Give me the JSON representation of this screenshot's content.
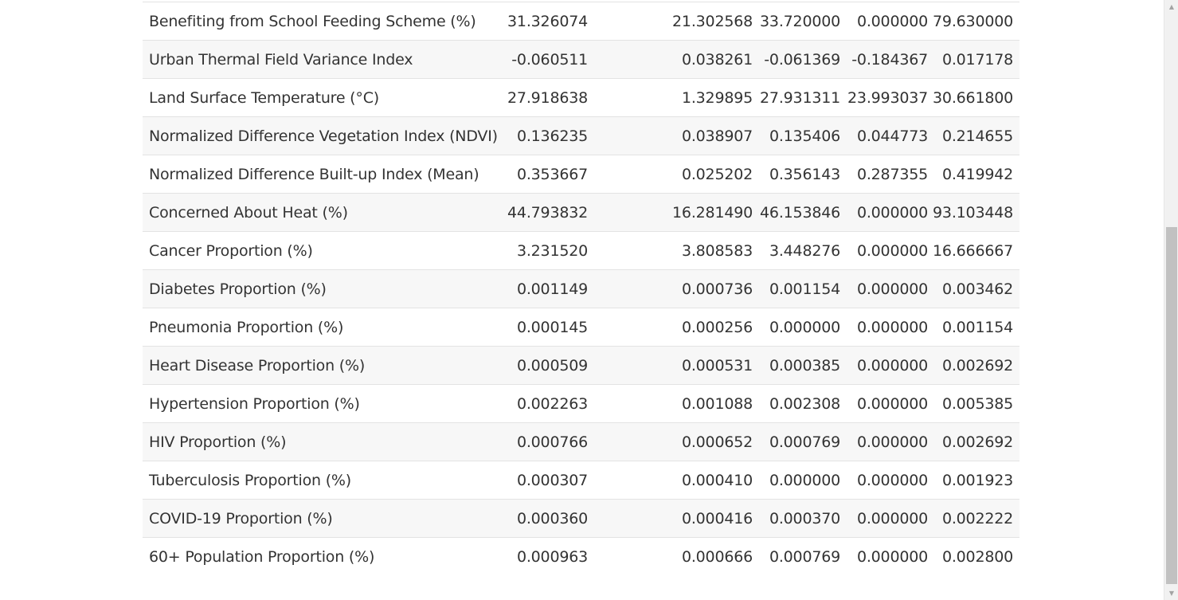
{
  "table": {
    "rows": [
      {
        "label": "Benefiting from School Feeding Scheme (%)",
        "mean": "31.326074",
        "std": "21.302568",
        "median": "33.720000",
        "min": "0.000000",
        "max": "79.630000"
      },
      {
        "label": "Urban Thermal Field Variance Index",
        "mean": "-0.060511",
        "std": "0.038261",
        "median": "-0.061369",
        "min": "-0.184367",
        "max": "0.017178"
      },
      {
        "label": "Land Surface Temperature (°C)",
        "mean": "27.918638",
        "std": "1.329895",
        "median": "27.931311",
        "min": "23.993037",
        "max": "30.661800"
      },
      {
        "label": "Normalized Difference Vegetation Index (NDVI)",
        "mean": "0.136235",
        "std": "0.038907",
        "median": "0.135406",
        "min": "0.044773",
        "max": "0.214655"
      },
      {
        "label": "Normalized Difference Built-up Index (Mean)",
        "mean": "0.353667",
        "std": "0.025202",
        "median": "0.356143",
        "min": "0.287355",
        "max": "0.419942"
      },
      {
        "label": "Concerned About Heat (%)",
        "mean": "44.793832",
        "std": "16.281490",
        "median": "46.153846",
        "min": "0.000000",
        "max": "93.103448"
      },
      {
        "label": "Cancer Proportion (%)",
        "mean": "3.231520",
        "std": "3.808583",
        "median": "3.448276",
        "min": "0.000000",
        "max": "16.666667"
      },
      {
        "label": "Diabetes Proportion (%)",
        "mean": "0.001149",
        "std": "0.000736",
        "median": "0.001154",
        "min": "0.000000",
        "max": "0.003462"
      },
      {
        "label": "Pneumonia Proportion (%)",
        "mean": "0.000145",
        "std": "0.000256",
        "median": "0.000000",
        "min": "0.000000",
        "max": "0.001154"
      },
      {
        "label": "Heart Disease Proportion (%)",
        "mean": "0.000509",
        "std": "0.000531",
        "median": "0.000385",
        "min": "0.000000",
        "max": "0.002692"
      },
      {
        "label": "Hypertension Proportion (%)",
        "mean": "0.002263",
        "std": "0.001088",
        "median": "0.002308",
        "min": "0.000000",
        "max": "0.005385"
      },
      {
        "label": "HIV Proportion (%)",
        "mean": "0.000766",
        "std": "0.000652",
        "median": "0.000769",
        "min": "0.000000",
        "max": "0.002692"
      },
      {
        "label": "Tuberculosis Proportion (%)",
        "mean": "0.000307",
        "std": "0.000410",
        "median": "0.000000",
        "min": "0.000000",
        "max": "0.001923"
      },
      {
        "label": "COVID-19 Proportion (%)",
        "mean": "0.000360",
        "std": "0.000416",
        "median": "0.000370",
        "min": "0.000000",
        "max": "0.002222"
      },
      {
        "label": "60+ Population Proportion (%)",
        "mean": "0.000963",
        "std": "0.000666",
        "median": "0.000769",
        "min": "0.000000",
        "max": "0.002800"
      }
    ]
  },
  "scrollbar": {
    "up_icon": "triangle-up-icon",
    "down_icon": "triangle-down-icon",
    "up_glyph": "▲",
    "down_glyph": "▼"
  }
}
